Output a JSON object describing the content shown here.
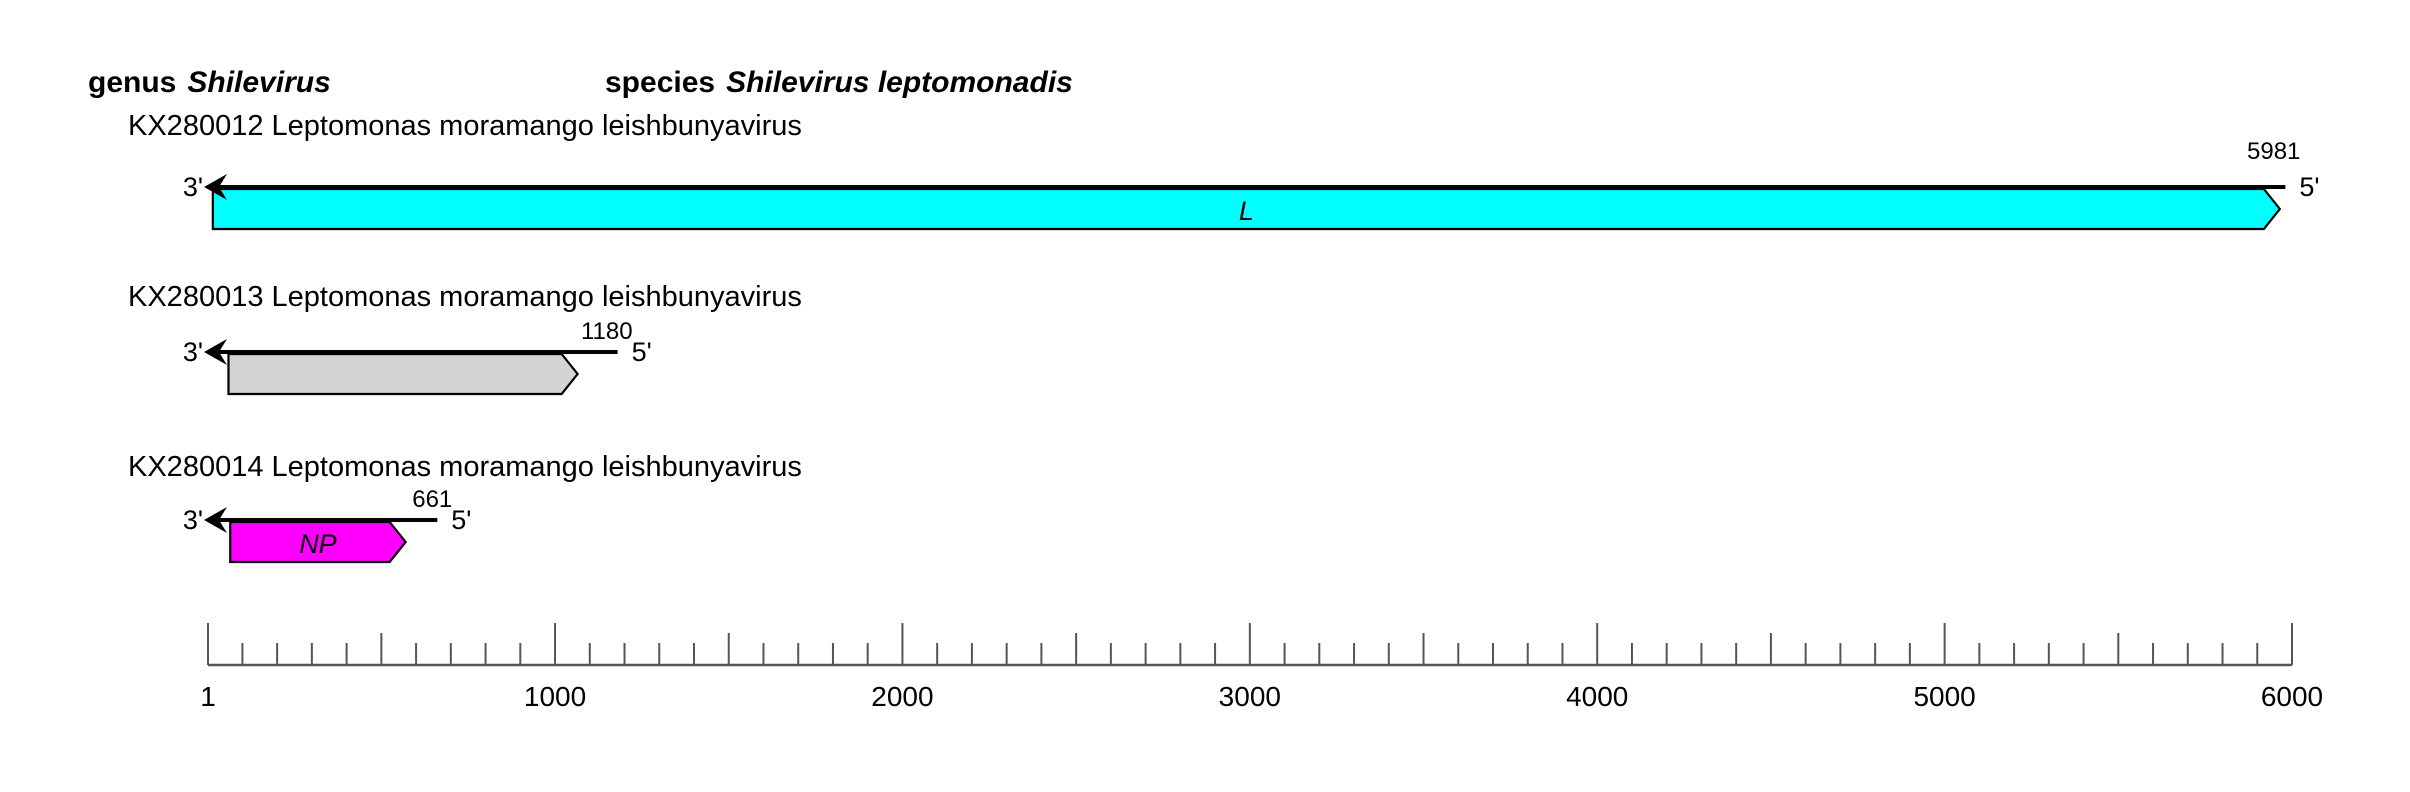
{
  "title": {
    "genus_word": "genus",
    "genus_name": "Shilevirus",
    "species_word": "species",
    "species_name": "Shilevirus leptomonadis"
  },
  "chart_data": {
    "type": "genome-map",
    "description": "Genome organization of Shilevirus leptomonadis segments, 3' to 5' negative-sense orientation",
    "axis": {
      "min": 1,
      "max": 6000,
      "minor_tick": 100,
      "medium_tick": 500,
      "major_tick": 1000,
      "tick_labels": [
        1,
        1000,
        2000,
        3000,
        4000,
        5000,
        6000
      ]
    },
    "strand_labels": {
      "three_prime": "3'",
      "five_prime": "5'"
    },
    "segments": [
      {
        "label": "KX280012 Leptomonas moramango leishbunyavirus",
        "accession": "KX280012",
        "length": 5981,
        "orfs": [
          {
            "name": "L",
            "start": 15,
            "end": 5965,
            "fill": "#00ffff"
          }
        ]
      },
      {
        "label": "KX280013 Leptomonas moramango leishbunyavirus",
        "accession": "KX280013",
        "length": 1180,
        "orfs": [
          {
            "name": "",
            "start": 60,
            "end": 1065,
            "fill": "#d3d3d3"
          }
        ]
      },
      {
        "label": "KX280014 Leptomonas moramango leishbunyavirus",
        "accession": "KX280014",
        "length": 661,
        "orfs": [
          {
            "name": "NP",
            "start": 65,
            "end": 570,
            "fill": "#ff00ff"
          }
        ]
      }
    ],
    "colors": {
      "outline": "#000000",
      "genome_line": "#000000",
      "ruler": "#555555",
      "text": "#000000",
      "background": "#ffffff"
    }
  }
}
